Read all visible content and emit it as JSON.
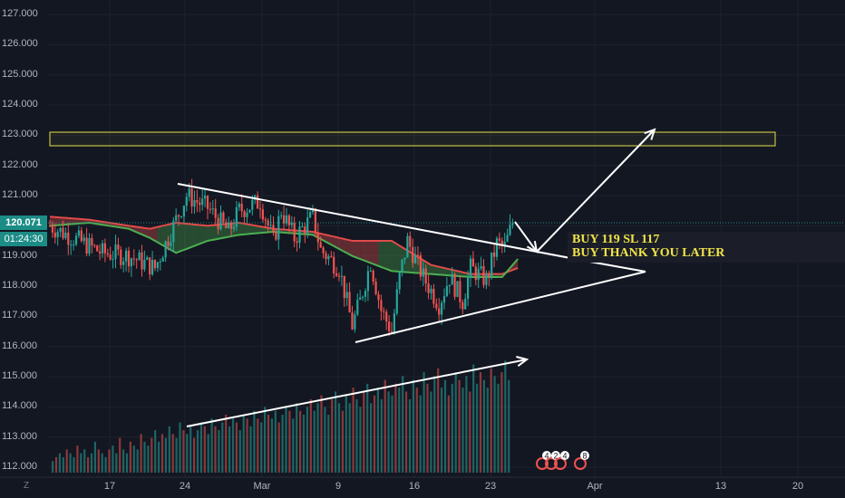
{
  "chart_data": {
    "type": "candlestick",
    "title": "",
    "price_axis": {
      "ticks": [
        "127.000",
        "126.000",
        "125.000",
        "124.000",
        "123.000",
        "122.000",
        "121.000",
        "120.000",
        "119.000",
        "118.000",
        "117.000",
        "116.000",
        "115.000",
        "114.000",
        "113.000",
        "112.000"
      ],
      "ylim": [
        111.9,
        127.2
      ]
    },
    "time_axis": {
      "ticks": [
        "17",
        "24",
        "Mar",
        "9",
        "16",
        "23",
        "Apr",
        "13",
        "20"
      ]
    },
    "last_price": "120.071",
    "countdown": "01:24:30",
    "annotations": {
      "line1": "BUY 119 SL 117",
      "line2": "BUY THANK YOU LATER"
    },
    "resistance_zone": [
      122.65,
      123.1
    ],
    "event_badges": [
      "4",
      "2",
      "4",
      "8"
    ],
    "series": [
      {
        "name": "price",
        "close_path": [
          [
            0,
            120.0
          ],
          [
            20,
            119.1
          ],
          [
            30,
            119.0
          ],
          [
            40,
            118.6
          ],
          [
            45,
            119.6
          ],
          [
            52,
            121.0
          ],
          [
            60,
            120.6
          ],
          [
            68,
            119.8
          ],
          [
            72,
            120.5
          ],
          [
            80,
            120.8
          ],
          [
            85,
            119.5
          ],
          [
            88,
            120.5
          ],
          [
            93,
            119.6
          ],
          [
            100,
            120.3
          ],
          [
            103,
            119.2
          ],
          [
            110,
            118.6
          ],
          [
            115,
            116.7
          ],
          [
            118,
            117.5
          ],
          [
            122,
            118.8
          ],
          [
            126,
            117.2
          ],
          [
            130,
            116.5
          ],
          [
            133,
            118.3
          ],
          [
            136,
            119.5
          ],
          [
            142,
            118.3
          ],
          [
            148,
            117.4
          ],
          [
            152,
            118.3
          ],
          [
            157,
            117.5
          ],
          [
            160,
            118.6
          ],
          [
            166,
            118.2
          ],
          [
            170,
            119.4
          ],
          [
            173,
            119.3
          ],
          [
            176,
            120.1
          ]
        ]
      },
      {
        "name": "cloud_top",
        "path": [
          [
            0,
            120.3
          ],
          [
            15,
            120.2
          ],
          [
            30,
            120.0
          ],
          [
            38,
            119.9
          ],
          [
            48,
            120.1
          ],
          [
            60,
            120.0
          ],
          [
            72,
            120.1
          ],
          [
            85,
            119.9
          ],
          [
            100,
            119.8
          ],
          [
            115,
            119.5
          ],
          [
            130,
            119.5
          ],
          [
            145,
            118.7
          ],
          [
            160,
            118.4
          ],
          [
            172,
            118.4
          ],
          [
            178,
            118.6
          ]
        ]
      },
      {
        "name": "cloud_bottom",
        "path": [
          [
            0,
            120.0
          ],
          [
            15,
            120.1
          ],
          [
            30,
            119.9
          ],
          [
            38,
            119.6
          ],
          [
            48,
            119.1
          ],
          [
            60,
            119.5
          ],
          [
            72,
            119.7
          ],
          [
            85,
            119.8
          ],
          [
            100,
            119.7
          ],
          [
            115,
            119.0
          ],
          [
            130,
            118.5
          ],
          [
            145,
            118.4
          ],
          [
            160,
            118.3
          ],
          [
            172,
            118.3
          ],
          [
            178,
            118.9
          ]
        ]
      }
    ],
    "volume": [
      3,
      4,
      5,
      4,
      6,
      5,
      4,
      7,
      5,
      6,
      4,
      5,
      8,
      6,
      5,
      4,
      6,
      7,
      5,
      9,
      6,
      5,
      8,
      7,
      6,
      10,
      8,
      7,
      9,
      11,
      8,
      10,
      9,
      12,
      10,
      9,
      13,
      11,
      10,
      12,
      9,
      11,
      13,
      12,
      10,
      14,
      12,
      11,
      13,
      15,
      12,
      14,
      13,
      11,
      15,
      14,
      12,
      16,
      14,
      13,
      17,
      15,
      14,
      16,
      13,
      15,
      17,
      16,
      14,
      18,
      16,
      15,
      17,
      19,
      16,
      18,
      20,
      17,
      15,
      19,
      21,
      18,
      16,
      20,
      18,
      22,
      19,
      17,
      21,
      23,
      18,
      20,
      22,
      19,
      24,
      21,
      20,
      23,
      22,
      25,
      21,
      19,
      24,
      22,
      20,
      26,
      23,
      21,
      25,
      27,
      22,
      24,
      20,
      23,
      26,
      24,
      22,
      25,
      21,
      28,
      23,
      26,
      24,
      22,
      27,
      25,
      23,
      26,
      29,
      24
    ],
    "trendlines": {
      "upper": [
        [
          196,
          203
        ],
        [
          645,
          288
        ]
      ],
      "lower": [
        [
          392,
          378
        ],
        [
          712,
          300
        ]
      ],
      "target_arrow": [
        [
          592,
          278
        ],
        [
          722,
          143
        ]
      ],
      "pullback_arrow": [
        [
          568,
          245
        ],
        [
          592,
          278
        ]
      ],
      "volume_arrow": [
        [
          206,
          471
        ],
        [
          581,
          397
        ]
      ]
    }
  }
}
